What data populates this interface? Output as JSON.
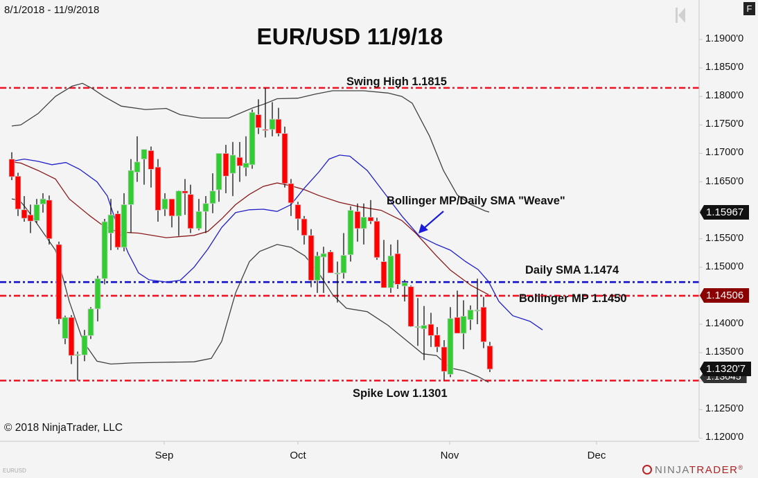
{
  "header": {
    "date_range": "8/1/2018 - 11/9/2018",
    "title": "EUR/USD 11/9/18",
    "f_button": "F"
  },
  "footer": {
    "copyright": "© 2018 NinjaTrader, LLC",
    "instrument": "EURUSD",
    "brand_ninja": "NINJA",
    "brand_trader": "TRADER",
    "brand_mark": "®"
  },
  "annotations": {
    "swing_high": "Swing High 1.1815",
    "weave": "Bollinger MP/Daily SMA \"Weave\"",
    "daily_sma": "Daily SMA 1.1474",
    "bollinger_mp": "Bollinger MP 1.1450",
    "spike_low": "Spike Low 1.1301"
  },
  "price_tags": {
    "upper_band": "1.15967",
    "sma": "1.14506",
    "last": "1.1320'7",
    "lower_band": "1.13045"
  },
  "colors": {
    "background": "#f4f4f4",
    "up_candle": "#32cd32",
    "down_candle": "#ff0000",
    "bollinger_band": "#404040",
    "bollinger_mid": "#8b1a1a",
    "sma": "#1f1fcc",
    "swing_line": "#ee1122",
    "sma_line": "#1010cc",
    "tag_dark": "#111111",
    "tag_red": "#8b0000"
  },
  "chart_data": {
    "type": "candlestick",
    "title": "EUR/USD 11/9/18",
    "subtitle": "8/1/2018 - 11/9/2018",
    "xlabel": "",
    "ylabel": "",
    "ylim": [
      1.1185,
      1.193
    ],
    "y_ticks": [
      "1.1200'0",
      "1.1250'0",
      "1.1300'0",
      "1.1350'0",
      "1.1400'0",
      "1.1450'0",
      "1.1500'0",
      "1.1550'0",
      "1.1600'0",
      "1.1650'0",
      "1.1700'0",
      "1.1750'0",
      "1.1800'0",
      "1.1850'0",
      "1.1900'0"
    ],
    "x_ticks": [
      {
        "label": "Sep",
        "x": 237
      },
      {
        "label": "Oct",
        "x": 430
      },
      {
        "label": "Nov",
        "x": 649
      },
      {
        "label": "Dec",
        "x": 861
      }
    ],
    "grid": false,
    "horizontal_lines": [
      {
        "name": "Swing High",
        "value": 1.1815,
        "color": "#ee1122",
        "style": "dash-dot"
      },
      {
        "name": "Daily SMA",
        "value": 1.1474,
        "color": "#1010cc",
        "style": "dash-dot"
      },
      {
        "name": "Bollinger MP",
        "value": 1.145,
        "color": "#ee1122",
        "style": "dash-dot"
      },
      {
        "name": "Spike Low",
        "value": 1.1301,
        "color": "#ee1122",
        "style": "dash-dot"
      }
    ],
    "candles": [
      {
        "x": 17,
        "o": 1.169,
        "h": 1.1702,
        "l": 1.1653,
        "c": 1.1659
      },
      {
        "x": 26,
        "o": 1.166,
        "h": 1.1666,
        "l": 1.159,
        "c": 1.1602
      },
      {
        "x": 35,
        "o": 1.1601,
        "h": 1.1625,
        "l": 1.158,
        "c": 1.1586
      },
      {
        "x": 44,
        "o": 1.1592,
        "h": 1.161,
        "l": 1.156,
        "c": 1.1581
      },
      {
        "x": 53,
        "o": 1.1582,
        "h": 1.162,
        "l": 1.1578,
        "c": 1.161
      },
      {
        "x": 62,
        "o": 1.1611,
        "h": 1.163,
        "l": 1.1596,
        "c": 1.162
      },
      {
        "x": 71,
        "o": 1.1618,
        "h": 1.1626,
        "l": 1.154,
        "c": 1.155
      },
      {
        "x": 85,
        "o": 1.154,
        "h": 1.1545,
        "l": 1.14,
        "c": 1.1409
      },
      {
        "x": 94,
        "o": 1.1375,
        "h": 1.1415,
        "l": 1.1365,
        "c": 1.1412
      },
      {
        "x": 103,
        "o": 1.1412,
        "h": 1.1416,
        "l": 1.133,
        "c": 1.1345
      },
      {
        "x": 112,
        "o": 1.1346,
        "h": 1.1352,
        "l": 1.1301,
        "c": 1.1347
      },
      {
        "x": 122,
        "o": 1.1346,
        "h": 1.139,
        "l": 1.1335,
        "c": 1.138
      },
      {
        "x": 131,
        "o": 1.138,
        "h": 1.143,
        "l": 1.1374,
        "c": 1.1427
      },
      {
        "x": 141,
        "o": 1.1427,
        "h": 1.1485,
        "l": 1.1405,
        "c": 1.148
      },
      {
        "x": 151,
        "o": 1.148,
        "h": 1.1585,
        "l": 1.147,
        "c": 1.158
      },
      {
        "x": 160,
        "o": 1.156,
        "h": 1.162,
        "l": 1.153,
        "c": 1.1592
      },
      {
        "x": 170,
        "o": 1.1594,
        "h": 1.1599,
        "l": 1.1531,
        "c": 1.1535
      },
      {
        "x": 179,
        "o": 1.1535,
        "h": 1.163,
        "l": 1.1528,
        "c": 1.161
      },
      {
        "x": 189,
        "o": 1.161,
        "h": 1.169,
        "l": 1.156,
        "c": 1.167
      },
      {
        "x": 198,
        "o": 1.1667,
        "h": 1.173,
        "l": 1.165,
        "c": 1.1685
      },
      {
        "x": 208,
        "o": 1.169,
        "h": 1.1707,
        "l": 1.1645,
        "c": 1.1707
      },
      {
        "x": 218,
        "o": 1.1705,
        "h": 1.1712,
        "l": 1.164,
        "c": 1.1672
      },
      {
        "x": 228,
        "o": 1.1676,
        "h": 1.169,
        "l": 1.158,
        "c": 1.16
      },
      {
        "x": 238,
        "o": 1.1602,
        "h": 1.163,
        "l": 1.159,
        "c": 1.162
      },
      {
        "x": 248,
        "o": 1.162,
        "h": 1.162,
        "l": 1.157,
        "c": 1.159
      },
      {
        "x": 258,
        "o": 1.159,
        "h": 1.1635,
        "l": 1.1555,
        "c": 1.1634
      },
      {
        "x": 267,
        "o": 1.1634,
        "h": 1.1655,
        "l": 1.1592,
        "c": 1.163
      },
      {
        "x": 275,
        "o": 1.1628,
        "h": 1.1645,
        "l": 1.156,
        "c": 1.1568
      },
      {
        "x": 287,
        "o": 1.1568,
        "h": 1.162,
        "l": 1.1565,
        "c": 1.1598
      },
      {
        "x": 297,
        "o": 1.1598,
        "h": 1.1625,
        "l": 1.156,
        "c": 1.1612
      },
      {
        "x": 307,
        "o": 1.1612,
        "h": 1.1665,
        "l": 1.1595,
        "c": 1.1634
      },
      {
        "x": 316,
        "o": 1.1636,
        "h": 1.17,
        "l": 1.1615,
        "c": 1.17
      },
      {
        "x": 326,
        "o": 1.17,
        "h": 1.1715,
        "l": 1.163,
        "c": 1.166
      },
      {
        "x": 336,
        "o": 1.1665,
        "h": 1.172,
        "l": 1.1625,
        "c": 1.1697
      },
      {
        "x": 346,
        "o": 1.1693,
        "h": 1.172,
        "l": 1.165,
        "c": 1.1678
      },
      {
        "x": 355,
        "o": 1.1675,
        "h": 1.173,
        "l": 1.166,
        "c": 1.1683
      },
      {
        "x": 364,
        "o": 1.168,
        "h": 1.1777,
        "l": 1.1673,
        "c": 1.1772
      },
      {
        "x": 373,
        "o": 1.1768,
        "h": 1.1795,
        "l": 1.1734,
        "c": 1.1745
      },
      {
        "x": 383,
        "o": 1.1742,
        "h": 1.1815,
        "l": 1.1728,
        "c": 1.1741
      },
      {
        "x": 393,
        "o": 1.1742,
        "h": 1.179,
        "l": 1.173,
        "c": 1.176
      },
      {
        "x": 402,
        "o": 1.176,
        "h": 1.178,
        "l": 1.173,
        "c": 1.1735
      },
      {
        "x": 411,
        "o": 1.1735,
        "h": 1.1747,
        "l": 1.164,
        "c": 1.1647
      },
      {
        "x": 420,
        "o": 1.1647,
        "h": 1.1655,
        "l": 1.159,
        "c": 1.1613
      },
      {
        "x": 430,
        "o": 1.161,
        "h": 1.1615,
        "l": 1.1565,
        "c": 1.1585
      },
      {
        "x": 439,
        "o": 1.1585,
        "h": 1.159,
        "l": 1.154,
        "c": 1.1556
      },
      {
        "x": 449,
        "o": 1.1556,
        "h": 1.1567,
        "l": 1.1465,
        "c": 1.1477
      },
      {
        "x": 458,
        "o": 1.1477,
        "h": 1.1527,
        "l": 1.1455,
        "c": 1.152
      },
      {
        "x": 467,
        "o": 1.1518,
        "h": 1.1536,
        "l": 1.1455,
        "c": 1.1524
      },
      {
        "x": 477,
        "o": 1.1527,
        "h": 1.153,
        "l": 1.149,
        "c": 1.149
      },
      {
        "x": 487,
        "o": 1.149,
        "h": 1.151,
        "l": 1.1438,
        "c": 1.149
      },
      {
        "x": 496,
        "o": 1.149,
        "h": 1.156,
        "l": 1.148,
        "c": 1.1521
      },
      {
        "x": 506,
        "o": 1.1522,
        "h": 1.1607,
        "l": 1.151,
        "c": 1.16
      },
      {
        "x": 516,
        "o": 1.1598,
        "h": 1.1612,
        "l": 1.1545,
        "c": 1.1568
      },
      {
        "x": 525,
        "o": 1.1568,
        "h": 1.1612,
        "l": 1.154,
        "c": 1.1588
      },
      {
        "x": 535,
        "o": 1.1588,
        "h": 1.1618,
        "l": 1.1576,
        "c": 1.1581
      },
      {
        "x": 544,
        "o": 1.1581,
        "h": 1.1587,
        "l": 1.1513,
        "c": 1.1517
      },
      {
        "x": 554,
        "o": 1.151,
        "h": 1.1548,
        "l": 1.147,
        "c": 1.1464
      },
      {
        "x": 564,
        "o": 1.1464,
        "h": 1.154,
        "l": 1.1455,
        "c": 1.152
      },
      {
        "x": 574,
        "o": 1.1524,
        "h": 1.1548,
        "l": 1.1462,
        "c": 1.147
      },
      {
        "x": 584,
        "o": 1.1467,
        "h": 1.1478,
        "l": 1.144,
        "c": 1.1473
      },
      {
        "x": 593,
        "o": 1.1466,
        "h": 1.1468,
        "l": 1.1395,
        "c": 1.1396
      },
      {
        "x": 603,
        "o": 1.1396,
        "h": 1.1446,
        "l": 1.1362,
        "c": 1.1396
      },
      {
        "x": 612,
        "o": 1.1392,
        "h": 1.1432,
        "l": 1.1337,
        "c": 1.1398
      },
      {
        "x": 622,
        "o": 1.14,
        "h": 1.142,
        "l": 1.136,
        "c": 1.138
      },
      {
        "x": 631,
        "o": 1.1381,
        "h": 1.1395,
        "l": 1.1351,
        "c": 1.136
      },
      {
        "x": 641,
        "o": 1.136,
        "h": 1.1372,
        "l": 1.1302,
        "c": 1.1317
      },
      {
        "x": 650,
        "o": 1.1312,
        "h": 1.143,
        "l": 1.1307,
        "c": 1.141
      },
      {
        "x": 660,
        "o": 1.1412,
        "h": 1.1459,
        "l": 1.1385,
        "c": 1.1384
      },
      {
        "x": 669,
        "o": 1.1384,
        "h": 1.1442,
        "l": 1.1356,
        "c": 1.1414
      },
      {
        "x": 679,
        "o": 1.1408,
        "h": 1.1433,
        "l": 1.139,
        "c": 1.1425
      },
      {
        "x": 689,
        "o": 1.1425,
        "h": 1.148,
        "l": 1.14,
        "c": 1.1425
      },
      {
        "x": 698,
        "o": 1.143,
        "h": 1.1448,
        "l": 1.1358,
        "c": 1.1369
      },
      {
        "x": 707,
        "o": 1.1362,
        "h": 1.1369,
        "l": 1.1316,
        "c": 1.1321
      }
    ],
    "series": [
      {
        "name": "Bollinger Upper",
        "color": "#404040",
        "points": [
          [
            17,
            1.1748
          ],
          [
            30,
            1.175
          ],
          [
            55,
            1.177
          ],
          [
            80,
            1.18
          ],
          [
            104,
            1.1818
          ],
          [
            119,
            1.1823
          ],
          [
            133,
            1.1814
          ],
          [
            150,
            1.18
          ],
          [
            175,
            1.1783
          ],
          [
            210,
            1.1777
          ],
          [
            240,
            1.1779
          ],
          [
            260,
            1.1768
          ],
          [
            290,
            1.1762
          ],
          [
            330,
            1.1762
          ],
          [
            365,
            1.178
          ],
          [
            380,
            1.1786
          ],
          [
            400,
            1.1796
          ],
          [
            430,
            1.1797
          ],
          [
            455,
            1.1804
          ],
          [
            480,
            1.181
          ],
          [
            525,
            1.181
          ],
          [
            560,
            1.1806
          ],
          [
            580,
            1.18
          ],
          [
            595,
            1.1788
          ],
          [
            620,
            1.173
          ],
          [
            640,
            1.167
          ],
          [
            660,
            1.1627
          ],
          [
            680,
            1.161
          ],
          [
            700,
            1.1599
          ],
          [
            706,
            1.1597
          ]
        ]
      },
      {
        "name": "Bollinger Middle",
        "color": "#8b1a1a",
        "points": [
          [
            17,
            1.1685
          ],
          [
            30,
            1.1683
          ],
          [
            55,
            1.167
          ],
          [
            80,
            1.1655
          ],
          [
            100,
            1.162
          ],
          [
            130,
            1.159
          ],
          [
            150,
            1.1572
          ],
          [
            170,
            1.1562
          ],
          [
            200,
            1.156
          ],
          [
            240,
            1.1552
          ],
          [
            280,
            1.1556
          ],
          [
            300,
            1.1563
          ],
          [
            320,
            1.1585
          ],
          [
            340,
            1.161
          ],
          [
            360,
            1.1628
          ],
          [
            380,
            1.1642
          ],
          [
            400,
            1.1648
          ],
          [
            420,
            1.1643
          ],
          [
            440,
            1.1636
          ],
          [
            460,
            1.1626
          ],
          [
            490,
            1.1614
          ],
          [
            520,
            1.1606
          ],
          [
            550,
            1.16
          ],
          [
            580,
            1.1582
          ],
          [
            600,
            1.156
          ],
          [
            630,
            1.152
          ],
          [
            650,
            1.1495
          ],
          [
            680,
            1.1468
          ],
          [
            705,
            1.1452
          ]
        ]
      },
      {
        "name": "Bollinger Lower",
        "color": "#404040",
        "points": [
          [
            17,
            1.162
          ],
          [
            28,
            1.1618
          ],
          [
            40,
            1.16
          ],
          [
            60,
            1.1565
          ],
          [
            80,
            1.153
          ],
          [
            100,
            1.144
          ],
          [
            120,
            1.137
          ],
          [
            140,
            1.1335
          ],
          [
            160,
            1.133
          ],
          [
            190,
            1.1332
          ],
          [
            230,
            1.1333
          ],
          [
            280,
            1.1334
          ],
          [
            305,
            1.134
          ],
          [
            320,
            1.137
          ],
          [
            340,
            1.1455
          ],
          [
            360,
            1.151
          ],
          [
            375,
            1.1528
          ],
          [
            400,
            1.154
          ],
          [
            420,
            1.1535
          ],
          [
            440,
            1.152
          ],
          [
            460,
            1.149
          ],
          [
            480,
            1.1452
          ],
          [
            500,
            1.1428
          ],
          [
            530,
            1.1422
          ],
          [
            560,
            1.1398
          ],
          [
            590,
            1.1368
          ],
          [
            610,
            1.1348
          ],
          [
            630,
            1.1345
          ],
          [
            650,
            1.1323
          ],
          [
            670,
            1.1318
          ],
          [
            690,
            1.1308
          ],
          [
            705,
            1.1298
          ]
        ]
      },
      {
        "name": "Daily SMA",
        "color": "#1f1fcc",
        "points": [
          [
            17,
            1.1686
          ],
          [
            35,
            1.169
          ],
          [
            55,
            1.1686
          ],
          [
            75,
            1.168
          ],
          [
            95,
            1.1684
          ],
          [
            115,
            1.1672
          ],
          [
            140,
            1.165
          ],
          [
            155,
            1.1625
          ],
          [
            170,
            1.157
          ],
          [
            185,
            1.1525
          ],
          [
            200,
            1.149
          ],
          [
            215,
            1.1478
          ],
          [
            240,
            1.1474
          ],
          [
            260,
            1.1477
          ],
          [
            280,
            1.15
          ],
          [
            300,
            1.1532
          ],
          [
            320,
            1.157
          ],
          [
            340,
            1.1596
          ],
          [
            360,
            1.1601
          ],
          [
            380,
            1.1602
          ],
          [
            400,
            1.1598
          ],
          [
            420,
            1.161
          ],
          [
            440,
            1.164
          ],
          [
            460,
            1.1667
          ],
          [
            475,
            1.169
          ],
          [
            490,
            1.1697
          ],
          [
            505,
            1.1695
          ],
          [
            530,
            1.167
          ],
          [
            555,
            1.163
          ],
          [
            580,
            1.159
          ],
          [
            605,
            1.1555
          ],
          [
            630,
            1.154
          ],
          [
            650,
            1.153
          ],
          [
            672,
            1.151
          ],
          [
            690,
            1.1496
          ],
          [
            705,
            1.1475
          ],
          [
            720,
            1.144
          ],
          [
            740,
            1.1415
          ],
          [
            765,
            1.1405
          ],
          [
            783,
            1.139
          ]
        ]
      }
    ]
  }
}
